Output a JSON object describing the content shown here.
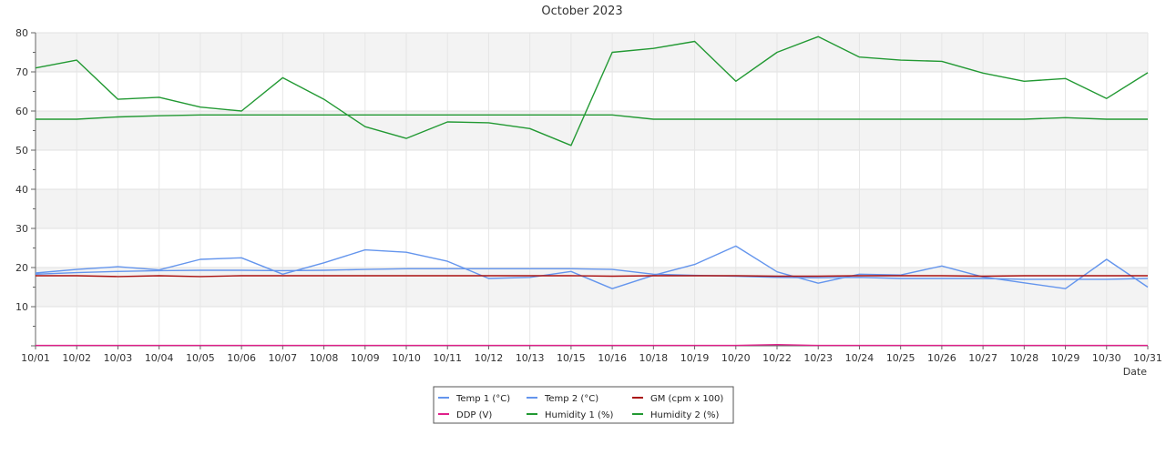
{
  "chart_data": {
    "type": "line",
    "title": "October 2023",
    "xlabel": "Date",
    "ylabel": "",
    "ylim": [
      0,
      80
    ],
    "yticks": [
      10,
      20,
      30,
      40,
      50,
      60,
      70,
      80
    ],
    "grid": true,
    "legend_position": "bottom-center",
    "categories": [
      "10/01",
      "10/02",
      "10/03",
      "10/04",
      "10/05",
      "10/06",
      "10/07",
      "10/08",
      "10/09",
      "10/10",
      "10/11",
      "10/12",
      "10/13",
      "10/15",
      "10/16",
      "10/18",
      "10/19",
      "10/20",
      "10/22",
      "10/23",
      "10/24",
      "10/25",
      "10/26",
      "10/27",
      "10/28",
      "10/29",
      "10/30",
      "10/31"
    ],
    "series": [
      {
        "name": "Temp 1 (°C)",
        "color": "#6495ed",
        "values": [
          18.3,
          18.7,
          19.0,
          19.2,
          19.3,
          19.3,
          19.2,
          19.3,
          19.5,
          19.7,
          19.7,
          19.7,
          19.7,
          19.7,
          19.5,
          18.3,
          18.0,
          17.8,
          17.5,
          17.4,
          17.5,
          17.2,
          17.2,
          17.2,
          17.0,
          17.0,
          17.0,
          17.2
        ]
      },
      {
        "name": "Temp 2 (°C)",
        "color": "#6495ed",
        "values": [
          18.6,
          19.5,
          20.2,
          19.4,
          22.1,
          22.5,
          18.3,
          21.2,
          24.5,
          23.9,
          21.6,
          17.2,
          17.5,
          19.0,
          14.6,
          18.0,
          20.8,
          25.5,
          18.9,
          16.0,
          18.3,
          18.1,
          20.4,
          17.6,
          16.1,
          14.6,
          22.1,
          15.0
        ]
      },
      {
        "name": "GM (cpm x 100)",
        "color": "#aa1111",
        "values": [
          17.9,
          17.9,
          17.7,
          17.9,
          17.7,
          17.9,
          17.9,
          17.9,
          17.9,
          17.9,
          17.9,
          17.9,
          17.9,
          17.9,
          17.8,
          17.9,
          17.9,
          17.9,
          17.8,
          17.8,
          17.9,
          17.9,
          17.9,
          17.8,
          17.9,
          17.9,
          17.9,
          17.9
        ]
      },
      {
        "name": "DDP (V)",
        "color": "#e0208a",
        "values": [
          0.1,
          0.1,
          0.1,
          0.1,
          0.1,
          0.1,
          0.1,
          0.1,
          0.1,
          0.1,
          0.1,
          0.1,
          0.1,
          0.1,
          0.1,
          0.1,
          0.1,
          0.1,
          0.3,
          0.1,
          0.1,
          0.1,
          0.1,
          0.1,
          0.1,
          0.1,
          0.1,
          0.1
        ]
      },
      {
        "name": "Humidity 1 (%)",
        "color": "#229933",
        "values": [
          57.9,
          57.9,
          58.5,
          58.8,
          59.0,
          59.0,
          59.0,
          59.0,
          59.0,
          59.0,
          59.0,
          59.0,
          59.0,
          59.0,
          59.0,
          57.9,
          57.9,
          57.9,
          57.9,
          57.9,
          57.9,
          57.9,
          57.9,
          57.9,
          57.9,
          58.3,
          57.9,
          57.9
        ]
      },
      {
        "name": "Humidity 2 (%)",
        "color": "#229933",
        "values": [
          71.0,
          73.0,
          63.0,
          63.5,
          61.0,
          60.0,
          68.5,
          63.0,
          56.0,
          53.0,
          57.2,
          57.0,
          55.5,
          51.2,
          75.0,
          76.0,
          77.8,
          67.6,
          75.0,
          79.0,
          73.8,
          73.0,
          72.7,
          69.7,
          67.6,
          68.3,
          63.2,
          69.8
        ]
      }
    ]
  }
}
